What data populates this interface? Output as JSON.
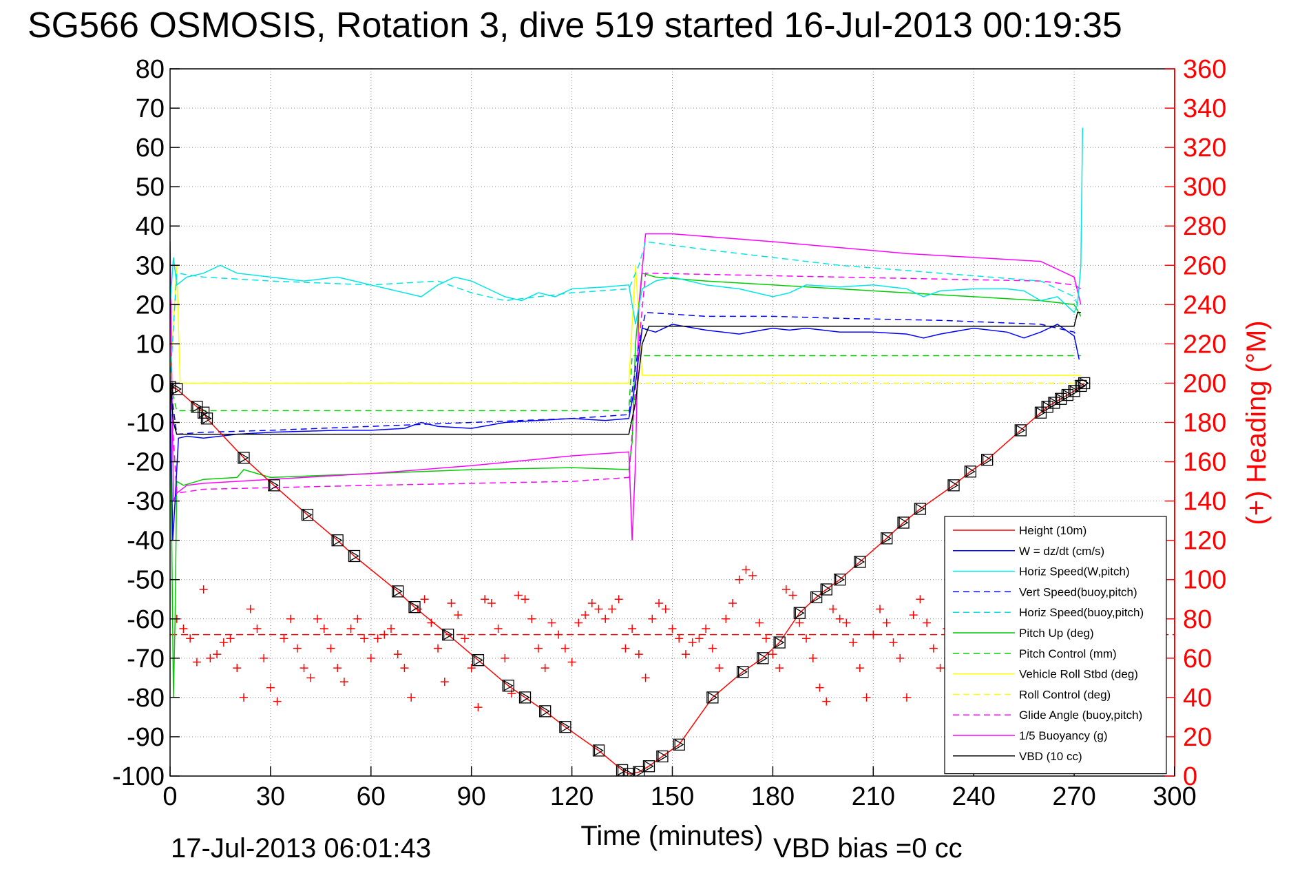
{
  "chart_data": {
    "type": "line",
    "title": "SG566 OSMOSIS, Rotation 3, dive 519 started 16-Jul-2013 00:19:35",
    "xlabel": "Time (minutes)",
    "ylabel_right": "(+) Heading (°M)",
    "footer_left": "17-Jul-2013 06:01:43",
    "footer_right": "VBD bias =0 cc",
    "xlim": [
      0,
      300
    ],
    "ylim": [
      -100,
      80
    ],
    "ylim_right": [
      0,
      360
    ],
    "xticks": [
      0,
      30,
      60,
      90,
      120,
      150,
      180,
      210,
      240,
      270,
      300
    ],
    "yticks": [
      -100,
      -90,
      -80,
      -70,
      -60,
      -50,
      -40,
      -30,
      -20,
      -10,
      0,
      10,
      20,
      30,
      40,
      50,
      60,
      70,
      80
    ],
    "yticks_right": [
      0,
      20,
      40,
      60,
      80,
      100,
      120,
      140,
      160,
      180,
      200,
      220,
      240,
      260,
      280,
      300,
      320,
      340,
      360
    ],
    "grid": true,
    "legend_position": "bottom-right",
    "series": [
      {
        "name": "Height (10m)",
        "color": "#ff0000",
        "style": "solid",
        "marker": "triangle",
        "x": [
          0,
          2,
          8,
          10,
          11,
          22,
          31,
          41,
          50,
          55,
          68,
          73,
          83,
          92,
          101,
          106,
          112,
          118,
          128,
          135,
          137,
          140,
          143,
          147,
          152,
          162,
          171,
          177,
          182,
          188,
          193,
          196,
          200,
          206,
          214,
          219,
          224,
          234,
          239,
          244,
          254,
          260,
          262,
          264,
          266,
          268,
          270,
          272,
          273
        ],
        "y": [
          -1,
          -1.5,
          -6,
          -7.5,
          -9,
          -19,
          -26,
          -33.5,
          -40,
          -44,
          -53,
          -57,
          -64,
          -70.5,
          -77,
          -80,
          -83.5,
          -87.5,
          -93.5,
          -98.5,
          -99.5,
          -99,
          -97.5,
          -95,
          -92,
          -80,
          -73.5,
          -70,
          -66,
          -58.5,
          -54.5,
          -52.5,
          -50,
          -45.5,
          -39.5,
          -35.5,
          -32,
          -26,
          -22.5,
          -19.5,
          -12,
          -7.5,
          -6,
          -5,
          -4,
          -3,
          -2,
          -0.7,
          0
        ]
      },
      {
        "name": "W = dz/dt (cm/s)",
        "color": "#0000ff",
        "style": "solid",
        "x": [
          0,
          0.8,
          1.5,
          2.5,
          5,
          10,
          20,
          30,
          50,
          60,
          70,
          75,
          80,
          90,
          100,
          110,
          120,
          130,
          137,
          139,
          141,
          145,
          150,
          160,
          170,
          180,
          185,
          190,
          200,
          210,
          220,
          225,
          230,
          240,
          250,
          255,
          260,
          265,
          270,
          271.5
        ],
        "y": [
          0,
          -40,
          -30,
          -14,
          -13.5,
          -14,
          -13,
          -12.5,
          -12,
          -12,
          -11.5,
          -10,
          -11,
          -11.5,
          -10,
          -9.5,
          -9,
          -9.5,
          -9,
          0,
          14,
          13,
          15,
          13.5,
          12.5,
          14,
          13.5,
          14,
          13,
          13,
          12.5,
          11.5,
          12.5,
          14,
          13,
          11.5,
          13,
          15,
          12,
          6
        ]
      },
      {
        "name": "Horiz Speed(W,pitch)",
        "color": "#00e5e5",
        "style": "solid",
        "x": [
          0,
          1,
          2,
          5,
          10,
          15,
          20,
          30,
          40,
          50,
          60,
          65,
          70,
          75,
          80,
          85,
          90,
          95,
          100,
          105,
          110,
          115,
          120,
          130,
          137,
          139,
          141,
          145,
          150,
          160,
          170,
          180,
          185,
          190,
          200,
          210,
          220,
          225,
          230,
          240,
          250,
          255,
          260,
          265,
          270,
          271,
          272,
          272.5
        ],
        "y": [
          20,
          32,
          25,
          27,
          28,
          30,
          28,
          27,
          26,
          27,
          25,
          24,
          23,
          22,
          25,
          27,
          26,
          24,
          22,
          21,
          23,
          22,
          24,
          24.5,
          25,
          15,
          24,
          26,
          27,
          25,
          24,
          22,
          23,
          25,
          24.5,
          25,
          24,
          22,
          23.5,
          24,
          24,
          23.5,
          21,
          22,
          18,
          20,
          30,
          65
        ]
      },
      {
        "name": "Vert Speed(buoy,pitch)",
        "color": "#0000ff",
        "style": "dashed",
        "x": [
          0,
          2,
          10,
          30,
          60,
          90,
          120,
          137,
          140,
          142,
          160,
          180,
          200,
          230,
          260,
          270,
          271
        ],
        "y": [
          0,
          -13,
          -12.5,
          -12,
          -11,
          -10,
          -9,
          -8,
          10,
          18,
          17,
          17,
          16.5,
          16,
          15,
          13,
          12
        ]
      },
      {
        "name": "Horiz Speed(buoy,pitch)",
        "color": "#00e5e5",
        "style": "dashed",
        "x": [
          0,
          2,
          10,
          30,
          60,
          80,
          90,
          100,
          110,
          120,
          137,
          140,
          142,
          160,
          180,
          200,
          230,
          260,
          270,
          271
        ],
        "y": [
          0,
          28,
          27,
          26,
          25,
          26,
          23,
          21,
          22,
          23,
          24,
          30,
          36,
          34,
          32,
          30,
          28,
          26,
          22,
          20
        ]
      },
      {
        "name": "Pitch Up (deg)",
        "color": "#00cc00",
        "style": "solid",
        "x": [
          0,
          1,
          1.5,
          2,
          4,
          10,
          20,
          22,
          30,
          60,
          90,
          120,
          137,
          138,
          139,
          141,
          145,
          160,
          180,
          200,
          220,
          240,
          260,
          270,
          272
        ],
        "y": [
          0,
          -80,
          -60,
          -25,
          -26,
          -24.5,
          -24,
          -22,
          -24,
          -23,
          -22,
          -21.5,
          -22,
          -15,
          10,
          28,
          27,
          26,
          25,
          24,
          23,
          22,
          21,
          20,
          17
        ]
      },
      {
        "name": "Pitch Control (mm)",
        "color": "#00cc00",
        "style": "dashed",
        "x": [
          0,
          2,
          137,
          138,
          272
        ],
        "y": [
          0,
          -7,
          -7,
          7,
          7
        ]
      },
      {
        "name": "Vehicle Roll Stbd (deg)",
        "color": "#ffff00",
        "style": "solid",
        "x": [
          0,
          2,
          3,
          137,
          139,
          141,
          272
        ],
        "y": [
          0,
          30,
          0,
          0,
          30,
          2,
          2
        ]
      },
      {
        "name": "Roll Control (deg)",
        "color": "#ffff00",
        "style": "dashed",
        "x": [
          0,
          2,
          137,
          138,
          272
        ],
        "y": [
          0,
          0,
          0,
          0,
          0
        ]
      },
      {
        "name": "Glide Angle (buoy,pitch)",
        "color": "#ff00ff",
        "style": "dashed",
        "x": [
          0,
          2,
          10,
          60,
          120,
          137,
          140,
          142,
          200,
          260,
          270,
          272
        ],
        "y": [
          0,
          -28,
          -27,
          -26,
          -25,
          -24,
          10,
          28,
          27,
          26,
          25,
          24
        ]
      },
      {
        "name": "1/5 Buoyancy (g)",
        "color": "#ff00ff",
        "style": "solid",
        "x": [
          0,
          1,
          2,
          5,
          10,
          30,
          60,
          90,
          120,
          137,
          138,
          139,
          140,
          142,
          150,
          180,
          200,
          220,
          240,
          260,
          265,
          270,
          272
        ],
        "y": [
          36,
          -30,
          -28,
          -26,
          -25.5,
          -24.5,
          -23,
          -21,
          -18.5,
          -17.5,
          -40,
          -20,
          20,
          38,
          38,
          36,
          34.5,
          33,
          32,
          31,
          29,
          27,
          20
        ]
      },
      {
        "name": "VBD (10 cc)",
        "color": "#000000",
        "style": "solid",
        "x": [
          0,
          1,
          2,
          137,
          139,
          141,
          143,
          270,
          271,
          272
        ],
        "y": [
          0,
          -10,
          -13,
          -13,
          -5,
          10,
          14.5,
          14.5,
          18,
          18
        ]
      }
    ],
    "heading_series": {
      "name": "Heading (°M)",
      "color": "#ff0000",
      "marker": "plus",
      "axis": "right",
      "target_heading": 72,
      "x": [
        2,
        4,
        6,
        8,
        10,
        12,
        14,
        16,
        18,
        20,
        22,
        24,
        26,
        28,
        30,
        32,
        34,
        36,
        38,
        40,
        42,
        44,
        46,
        48,
        50,
        52,
        54,
        56,
        58,
        60,
        62,
        64,
        66,
        68,
        70,
        72,
        74,
        76,
        78,
        80,
        82,
        84,
        86,
        88,
        90,
        92,
        94,
        96,
        98,
        100,
        102,
        104,
        106,
        108,
        110,
        112,
        114,
        116,
        118,
        120,
        122,
        124,
        126,
        128,
        130,
        132,
        134,
        136,
        138,
        140,
        142,
        144,
        146,
        148,
        150,
        152,
        154,
        156,
        158,
        160,
        162,
        164,
        166,
        168,
        170,
        172,
        174,
        176,
        178,
        180,
        182,
        184,
        186,
        188,
        190,
        192,
        194,
        196,
        198,
        200,
        202,
        204,
        206,
        208,
        210,
        212,
        214,
        216,
        218,
        220,
        222,
        224,
        226,
        228,
        230,
        232
      ],
      "y": [
        80,
        75,
        70,
        58,
        95,
        60,
        62,
        68,
        70,
        55,
        40,
        85,
        75,
        60,
        45,
        38,
        70,
        80,
        65,
        55,
        50,
        80,
        75,
        65,
        55,
        48,
        75,
        80,
        70,
        60,
        70,
        72,
        75,
        62,
        55,
        40,
        85,
        90,
        78,
        65,
        48,
        88,
        82,
        70,
        55,
        35,
        90,
        88,
        75,
        60,
        42,
        92,
        90,
        80,
        65,
        55,
        78,
        72,
        65,
        58,
        78,
        82,
        88,
        85,
        80,
        85,
        90,
        65,
        75,
        62,
        50,
        80,
        88,
        85,
        75,
        70,
        62,
        68,
        70,
        75,
        65,
        55,
        80,
        88,
        100,
        105,
        102,
        78,
        70,
        62,
        55,
        95,
        92,
        78,
        70,
        60,
        45,
        38,
        85,
        80,
        78,
        68,
        55,
        40,
        72,
        85,
        78,
        68,
        60,
        40,
        82,
        90,
        78,
        65,
        55,
        75
      ]
    }
  }
}
